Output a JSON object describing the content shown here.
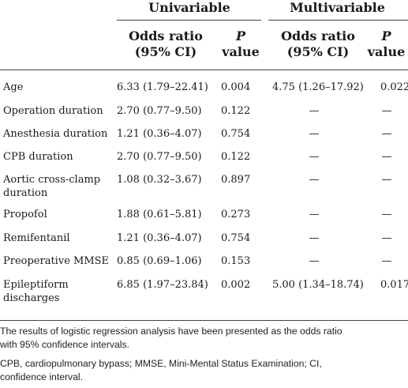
{
  "table": {
    "group_headers": {
      "univariable": "Univariable",
      "multivariable": "Multivariable"
    },
    "col_headers": {
      "or_line1": "Odds ratio",
      "or_line2": "(95% CI)",
      "p_line1": "P",
      "p_line2": "value"
    },
    "rows": [
      {
        "label_lines": [
          "Age"
        ],
        "uni_or": "6.33 (1.79–22.41)",
        "uni_p": "0.004",
        "multi_or": "4.75 (1.26–17.92)",
        "multi_p": "0.022"
      },
      {
        "label_lines": [
          "Operation duration"
        ],
        "uni_or": "2.70 (0.77–9.50)",
        "uni_p": "0.122",
        "multi_or": "—",
        "multi_p": "—"
      },
      {
        "label_lines": [
          "Anesthesia duration"
        ],
        "uni_or": "1.21 (0.36–4.07)",
        "uni_p": "0.754",
        "multi_or": "—",
        "multi_p": "—"
      },
      {
        "label_lines": [
          "CPB duration"
        ],
        "uni_or": "2.70 (0.77–9.50)",
        "uni_p": "0.122",
        "multi_or": "—",
        "multi_p": "—"
      },
      {
        "label_lines": [
          "Aortic cross-clamp",
          "duration"
        ],
        "uni_or": "1.08 (0.32–3.67)",
        "uni_p": "0.897",
        "multi_or": "—",
        "multi_p": "—"
      },
      {
        "label_lines": [
          "Propofol"
        ],
        "uni_or": "1.88 (0.61–5.81)",
        "uni_p": "0.273",
        "multi_or": "—",
        "multi_p": "—"
      },
      {
        "label_lines": [
          "Remifentanil"
        ],
        "uni_or": "1.21 (0.36–4.07)",
        "uni_p": "0.754",
        "multi_or": "—",
        "multi_p": "—"
      },
      {
        "label_lines": [
          "Preoperative MMSE"
        ],
        "uni_or": "0.85 (0.69–1.06)",
        "uni_p": "0.153",
        "multi_or": "—",
        "multi_p": "—"
      },
      {
        "label_lines": [
          "Epileptiform",
          "discharges"
        ],
        "uni_or": "6.85 (1.97–23.84)",
        "uni_p": "0.002",
        "multi_or": "5.00 (1.34–18.74)",
        "multi_p": "0.017"
      }
    ]
  },
  "footnotes": {
    "line1": "The results of logistic regression analysis have been presented as the odds ratio",
    "line2": "with 95% confidence intervals.",
    "line3": "CPB, cardiopulmonary bypass; MMSE, Mini-Mental Status Examination; CI,",
    "line4": "confidence interval."
  }
}
